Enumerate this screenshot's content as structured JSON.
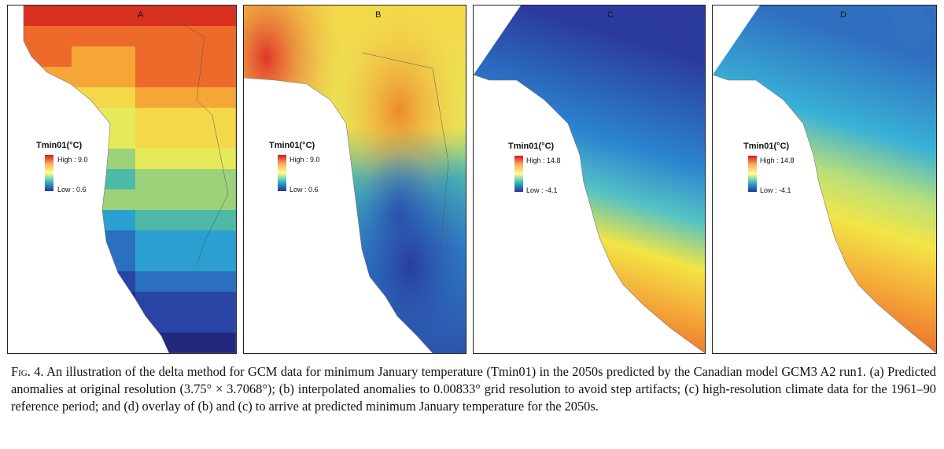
{
  "panels": [
    {
      "letter": "A",
      "legend_title": "Tmin01(°C)",
      "high": "High : 9.0",
      "low": "Low : 0.6"
    },
    {
      "letter": "B",
      "legend_title": "Tmin01(°C)",
      "high": "High : 9.0",
      "low": "Low : 0.6"
    },
    {
      "letter": "C",
      "legend_title": "Tmin01(°C)",
      "high": "High : 14.8",
      "low": "Low : -4.1"
    },
    {
      "letter": "D",
      "legend_title": "Tmin01(°C)",
      "high": "High : 14.8",
      "low": "Low : -4.1"
    }
  ],
  "colors": {
    "high": "#d7191c",
    "mid_high": "#fdae61",
    "mid": "#ffff8c",
    "mid_low": "#2bb5c7",
    "low": "#2c2f9e"
  },
  "caption": {
    "label": "Fig. 4.",
    "text": "An illustration of the delta method for GCM data for minimum January temperature (Tmin01) in the 2050s predicted by the Canadian model GCM3 A2 run1. (a) Predicted anomalies at original resolution (3.75° × 3.7068°); (b) interpolated anomalies to 0.00833° grid resolution to avoid step artifacts; (c) high-resolution climate data for the 1961–90 reference period; and (d) overlay of (b) and (c) to arrive at predicted minimum January temperature for the 2050s."
  }
}
